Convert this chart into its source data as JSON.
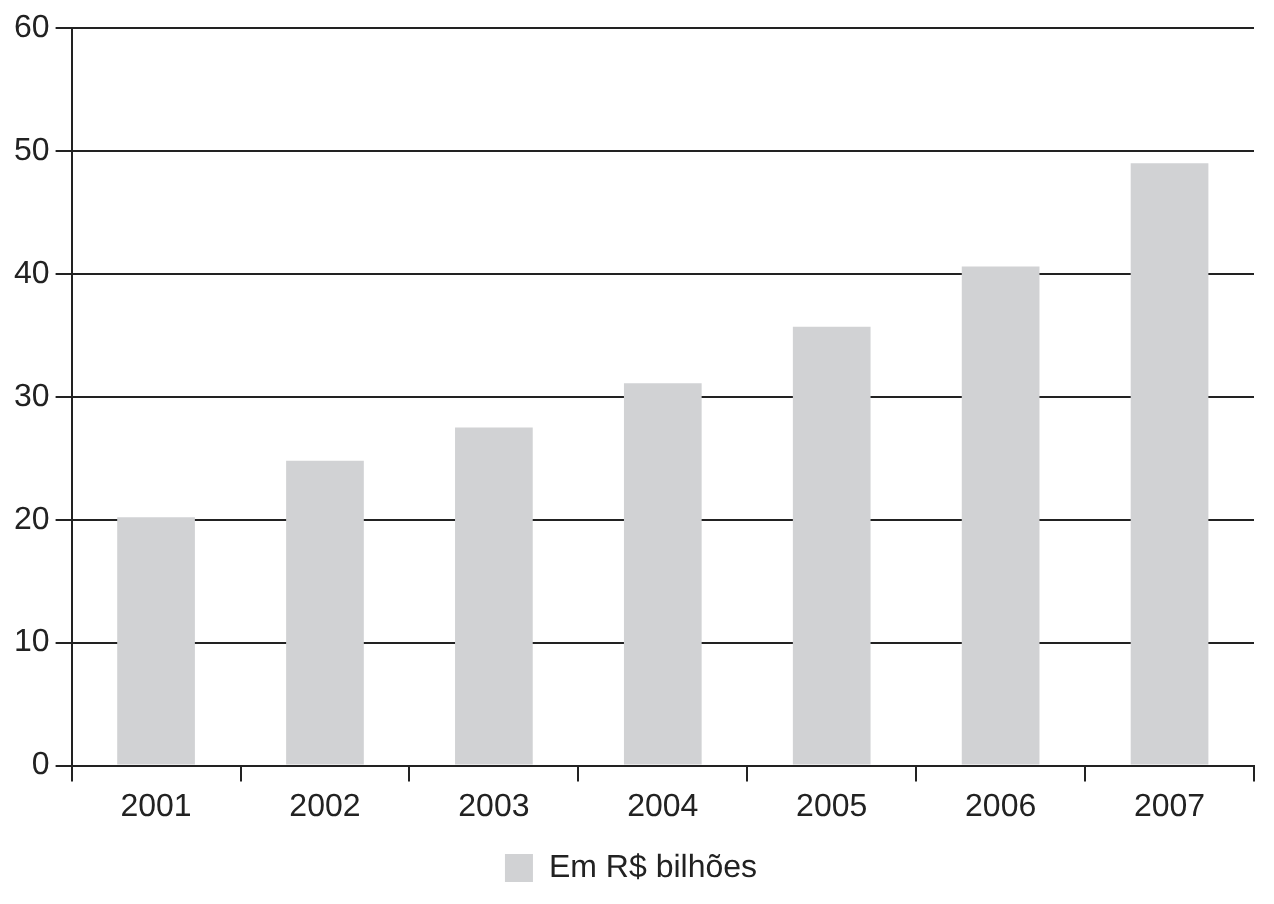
{
  "chart_data": {
    "type": "bar",
    "categories": [
      "2001",
      "2002",
      "2003",
      "2004",
      "2005",
      "2006",
      "2007"
    ],
    "series": [
      {
        "name": "Em R$ bilhões",
        "color": "#d1d2d4",
        "values": [
          20.2,
          24.8,
          27.5,
          31.1,
          35.7,
          40.6,
          49.0
        ]
      }
    ],
    "ylim": [
      0,
      60
    ],
    "yticks": [
      0,
      10,
      20,
      30,
      40,
      50,
      60
    ],
    "grid": "y",
    "legend": "bottom"
  }
}
